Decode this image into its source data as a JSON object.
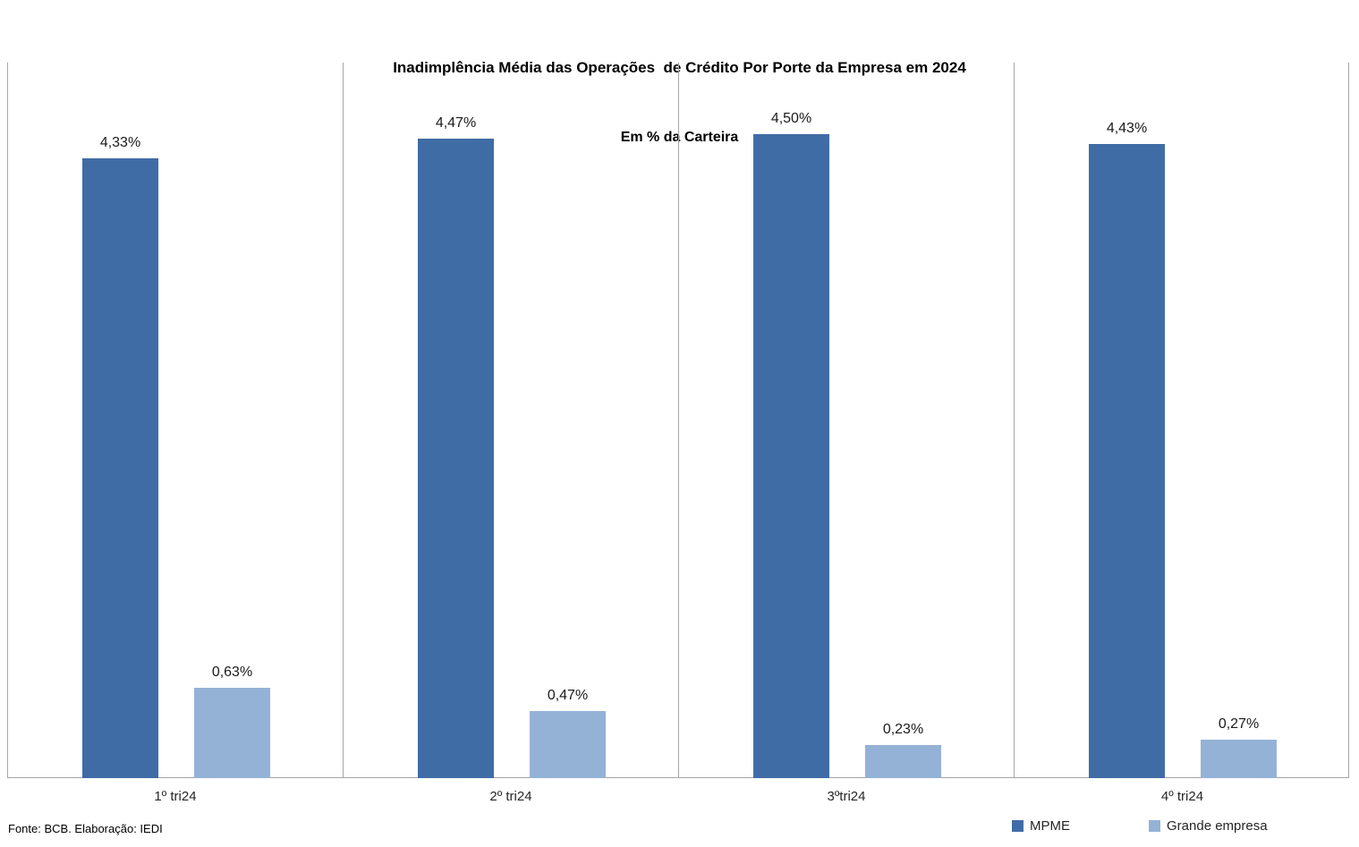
{
  "title": {
    "line1": "Inadimplência Média das Operações  de Crédito Por Porte da Empresa em 2024",
    "line2": "Em % da Carteira"
  },
  "footer": {
    "source": "Fonte: BCB. Elaboração: IEDI"
  },
  "legend": [
    {
      "label": "MPME",
      "color": "#406CA6"
    },
    {
      "label": "Grande empresa",
      "color": "#94B2D6"
    }
  ],
  "colors": {
    "mpme": "#406CA6",
    "grande_empresa": "#94B2D6",
    "gridline": "#A6A6A6"
  },
  "chart_data": {
    "type": "bar",
    "title": "Inadimplência Média das Operações de Crédito Por Porte da Empresa em 2024",
    "subtitle": "Em % da Carteira",
    "xlabel": "",
    "ylabel": "",
    "ylim": [
      0,
      5
    ],
    "grid": "vertical category separators only, no horizontal gridlines, no y-axis ticks",
    "legend_position": "bottom-right",
    "categories": [
      "1º tri24",
      "2º tri24",
      "3ºtri24",
      "4º tri24"
    ],
    "series": [
      {
        "name": "MPME",
        "color": "#406CA6",
        "values": [
          4.33,
          4.47,
          4.5,
          4.43
        ],
        "labels": [
          "4,33%",
          "4,47%",
          "4,50%",
          "4,43%"
        ]
      },
      {
        "name": "Grande empresa",
        "color": "#94B2D6",
        "values": [
          0.63,
          0.47,
          0.23,
          0.27
        ],
        "labels": [
          "0,63%",
          "0,47%",
          "0,23%",
          "0,27%"
        ]
      }
    ]
  }
}
